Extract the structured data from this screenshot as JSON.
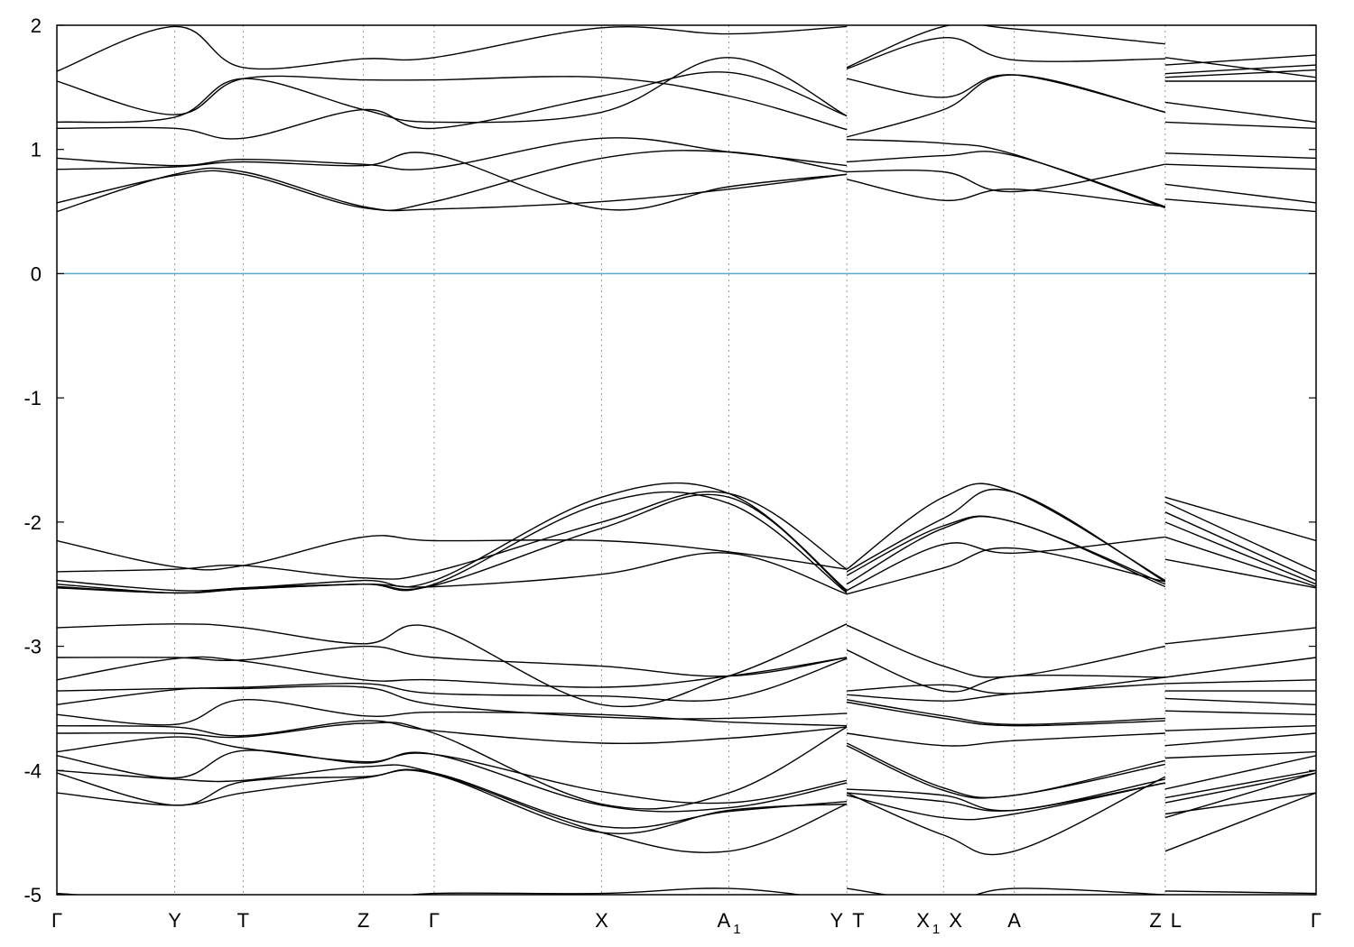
{
  "chart_data": {
    "type": "line",
    "title": "",
    "xlabel": "",
    "ylabel": "",
    "ylim": [
      -5,
      2
    ],
    "yticks": [
      "-5",
      "-4",
      "-3",
      "-2",
      "-1",
      "0",
      "1",
      "2"
    ],
    "grid": "vertical dotted lines at high-symmetry points",
    "fermi_level": 0,
    "colors": {
      "bands": "#000000",
      "fermi": "#5aa9c6",
      "grid": "#999999"
    },
    "kpoints": [
      {
        "label": "Γ",
        "sub": "",
        "x": 0.0
      },
      {
        "label": "Y",
        "sub": "",
        "x": 1.0
      },
      {
        "label": "T",
        "sub": "",
        "x": 1.58
      },
      {
        "label": "Z",
        "sub": "",
        "x": 2.6
      },
      {
        "label": "Γ",
        "sub": "",
        "x": 3.2
      },
      {
        "label": "X",
        "sub": "",
        "x": 4.62
      },
      {
        "label": "A",
        "sub": "1",
        "x": 5.7
      },
      {
        "label": "Y",
        "sub": "",
        "x": 6.7
      },
      {
        "label": "T",
        "sub": "",
        "x": 6.7
      },
      {
        "label": "X",
        "sub": "1",
        "x": 7.52
      },
      {
        "label": "X",
        "sub": "",
        "x": 7.52
      },
      {
        "label": "A",
        "sub": "",
        "x": 8.12
      },
      {
        "label": "Z",
        "sub": "",
        "x": 9.4
      },
      {
        "label": "L",
        "sub": "",
        "x": 9.4
      },
      {
        "label": "Γ",
        "sub": "",
        "x": 10.68
      }
    ],
    "xlim": [
      0,
      10.68
    ],
    "segments": [
      {
        "x": [
          0,
          1,
          1.58,
          2.6,
          3.2,
          4.62,
          5.7,
          6.7
        ],
        "bands": [
          [
            0.5,
            0.8,
            0.82,
            0.54,
            0.52,
            0.58,
            0.68,
            0.8
          ],
          [
            0.57,
            0.79,
            0.8,
            0.53,
            0.58,
            0.93,
            0.98,
            0.82
          ],
          [
            0.84,
            0.86,
            0.9,
            0.87,
            0.96,
            0.52,
            0.7,
            0.8
          ],
          [
            0.93,
            0.87,
            0.92,
            0.88,
            0.85,
            1.09,
            0.98,
            0.87
          ],
          [
            1.17,
            1.17,
            1.09,
            1.32,
            1.17,
            1.43,
            1.62,
            1.27
          ],
          [
            1.22,
            1.26,
            1.57,
            1.32,
            1.22,
            1.3,
            1.74,
            1.27
          ],
          [
            1.55,
            1.28,
            1.57,
            1.56,
            1.56,
            1.58,
            1.43,
            1.16
          ],
          [
            1.63,
            1.99,
            1.66,
            1.73,
            1.74,
            1.98,
            1.93,
            1.99
          ],
          [
            -2.15,
            -2.36,
            -2.35,
            -2.12,
            -2.15,
            -2.15,
            -2.24,
            -2.38
          ],
          [
            -2.4,
            -2.38,
            -2.35,
            -2.45,
            -2.4,
            -2.0,
            -1.77,
            -2.38
          ],
          [
            -2.47,
            -2.55,
            -2.53,
            -2.47,
            -2.47,
            -1.8,
            -1.77,
            -2.55
          ],
          [
            -2.5,
            -2.57,
            -2.53,
            -2.5,
            -2.5,
            -1.85,
            -1.85,
            -2.57
          ],
          [
            -2.52,
            -2.57,
            -2.54,
            -2.5,
            -2.51,
            -2.05,
            -1.8,
            -2.56
          ],
          [
            -2.53,
            -2.57,
            -2.54,
            -2.5,
            -2.52,
            -2.42,
            -2.25,
            -2.58
          ],
          [
            -2.85,
            -2.82,
            -2.85,
            -2.98,
            -2.85,
            -3.47,
            -3.24,
            -2.82
          ],
          [
            -3.09,
            -3.09,
            -3.11,
            -3.0,
            -3.09,
            -3.16,
            -3.24,
            -3.09
          ],
          [
            -3.27,
            -3.1,
            -3.12,
            -3.27,
            -3.27,
            -3.33,
            -3.24,
            -3.09
          ],
          [
            -3.36,
            -3.34,
            -3.33,
            -3.3,
            -3.38,
            -3.4,
            -3.42,
            -3.1
          ],
          [
            -3.47,
            -3.35,
            -3.34,
            -3.33,
            -3.47,
            -3.57,
            -3.58,
            -3.54
          ],
          [
            -3.55,
            -3.63,
            -3.43,
            -3.56,
            -3.53,
            -3.55,
            -3.61,
            -3.64
          ],
          [
            -3.64,
            -3.65,
            -3.72,
            -3.6,
            -3.68,
            -3.78,
            -3.74,
            -3.65
          ],
          [
            -3.7,
            -3.7,
            -3.73,
            -3.62,
            -3.7,
            -4.27,
            -4.18,
            -3.65
          ],
          [
            -3.85,
            -3.73,
            -3.82,
            -3.93,
            -3.87,
            -4.17,
            -4.26,
            -4.08
          ],
          [
            -3.88,
            -4.06,
            -3.84,
            -3.94,
            -3.87,
            -4.28,
            -4.3,
            -4.1
          ],
          [
            -4.0,
            -4.07,
            -4.08,
            -3.97,
            -4.02,
            -4.5,
            -4.65,
            -4.27
          ],
          [
            -4.02,
            -4.28,
            -4.09,
            -4.05,
            -4.03,
            -4.5,
            -4.32,
            -4.27
          ],
          [
            -4.18,
            -4.28,
            -4.18,
            -4.06,
            -4.02,
            -4.45,
            -4.33,
            -4.25
          ],
          [
            -4.99,
            -5.05,
            -5.05,
            -5.05,
            -4.99,
            -4.99,
            -4.95,
            -5.05
          ]
        ]
      },
      {
        "x": [
          6.7,
          7.52,
          8.12,
          9.4
        ],
        "bands": [
          [
            0.76,
            0.59,
            0.68,
            0.54
          ],
          [
            0.82,
            0.82,
            0.66,
            0.88
          ],
          [
            0.9,
            0.95,
            0.95,
            0.54
          ],
          [
            1.08,
            1.05,
            0.96,
            0.53
          ],
          [
            1.1,
            1.32,
            1.6,
            1.3
          ],
          [
            1.57,
            1.42,
            1.6,
            1.3
          ],
          [
            1.65,
            1.9,
            1.72,
            1.73
          ],
          [
            1.66,
            1.99,
            1.97,
            1.85
          ],
          [
            -2.38,
            -1.8,
            -1.76,
            -2.47
          ],
          [
            -2.4,
            -1.97,
            -1.76,
            -2.48
          ],
          [
            -2.43,
            -2.03,
            -2.0,
            -2.5
          ],
          [
            -2.5,
            -2.05,
            -2.0,
            -2.52
          ],
          [
            -2.55,
            -2.18,
            -2.25,
            -2.12
          ],
          [
            -2.58,
            -2.37,
            -2.21,
            -2.48
          ],
          [
            -2.83,
            -3.16,
            -3.24,
            -3.0
          ],
          [
            -3.03,
            -3.36,
            -3.24,
            -3.25
          ],
          [
            -3.36,
            -3.31,
            -3.38,
            -3.25
          ],
          [
            -3.39,
            -3.44,
            -3.38,
            -3.3
          ],
          [
            -3.43,
            -3.56,
            -3.63,
            -3.58
          ],
          [
            -3.45,
            -3.58,
            -3.64,
            -3.6
          ],
          [
            -3.7,
            -3.8,
            -3.76,
            -3.7
          ],
          [
            -3.78,
            -4.14,
            -4.2,
            -3.92
          ],
          [
            -3.8,
            -4.16,
            -4.2,
            -3.95
          ],
          [
            -4.15,
            -4.2,
            -4.32,
            -4.07
          ],
          [
            -4.18,
            -4.25,
            -4.32,
            -4.1
          ],
          [
            -4.2,
            -4.38,
            -4.35,
            -4.1
          ],
          [
            -4.18,
            -4.52,
            -4.65,
            -4.05
          ],
          [
            -4.95,
            -5.05,
            -4.95,
            -5.0
          ]
        ]
      },
      {
        "x": [
          9.4,
          10.68
        ],
        "bands": [
          [
            0.6,
            0.5
          ],
          [
            0.72,
            0.57
          ],
          [
            0.88,
            0.84
          ],
          [
            0.97,
            0.93
          ],
          [
            1.22,
            1.17
          ],
          [
            1.38,
            1.22
          ],
          [
            1.55,
            1.55
          ],
          [
            1.58,
            1.64
          ],
          [
            1.61,
            1.68
          ],
          [
            1.68,
            1.76
          ],
          [
            1.74,
            1.58
          ],
          [
            -1.8,
            -2.15
          ],
          [
            -1.84,
            -2.4
          ],
          [
            -1.92,
            -2.47
          ],
          [
            -2.0,
            -2.5
          ],
          [
            -2.12,
            -2.52
          ],
          [
            -2.3,
            -2.53
          ],
          [
            -2.98,
            -2.85
          ],
          [
            -3.25,
            -3.09
          ],
          [
            -3.3,
            -3.27
          ],
          [
            -3.36,
            -3.36
          ],
          [
            -3.42,
            -3.47
          ],
          [
            -3.52,
            -3.55
          ],
          [
            -3.68,
            -3.64
          ],
          [
            -3.8,
            -3.7
          ],
          [
            -3.9,
            -3.85
          ],
          [
            -4.15,
            -3.88
          ],
          [
            -4.22,
            -4.0
          ],
          [
            -4.26,
            -4.02
          ],
          [
            -4.35,
            -4.18
          ],
          [
            -4.38,
            -4.02
          ],
          [
            -4.65,
            -4.18
          ],
          [
            -4.97,
            -4.99
          ]
        ]
      }
    ]
  }
}
